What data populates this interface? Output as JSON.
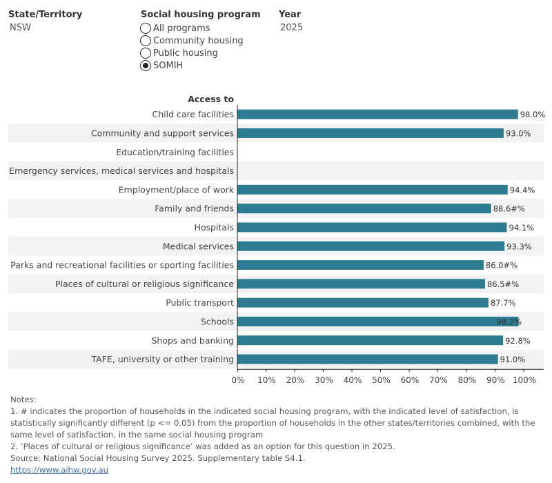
{
  "filters": {
    "state": {
      "label": "State/Territory",
      "value": "NSW"
    },
    "program": {
      "label": "Social housing program",
      "options": [
        "All programs",
        "Community housing",
        "Public housing",
        "SOMIH"
      ],
      "selected": "SOMIH"
    },
    "year": {
      "label": "Year",
      "value": "2025"
    }
  },
  "chart_data": {
    "type": "bar",
    "orientation": "horizontal",
    "category_header": "Access to",
    "categories": [
      "Child care facilities",
      "Community and support services",
      "Education/training facilities",
      "Emergency services, medical services and hospitals",
      "Employment/place of work",
      "Family and friends",
      "Hospitals",
      "Medical services",
      "Parks and recreational facilities or sporting facilities",
      "Places of cultural or religious significance",
      "Public transport",
      "Schools",
      "Shops and banking",
      "TAFE, university or other training"
    ],
    "values": [
      98.0,
      93.0,
      null,
      null,
      94.4,
      88.6,
      94.1,
      93.3,
      86.0,
      86.5,
      87.7,
      98.2,
      92.8,
      91.0
    ],
    "value_labels": [
      "98.0%",
      "93.0%",
      "",
      "",
      "94.4%",
      "88.6#%",
      "94.1%",
      "93.3%",
      "86.0#%",
      "86.5#%",
      "87.7%",
      "98.2%",
      "92.8%",
      "91.0%"
    ],
    "x_ticks": [
      "0%",
      "10%",
      "20%",
      "30%",
      "40%",
      "50%",
      "60%",
      "70%",
      "80%",
      "90%",
      "100%"
    ],
    "xlim": [
      0,
      100
    ],
    "bar_color": "#2e7c92",
    "band_color": "#f2f2f2"
  },
  "notes": {
    "heading": "Notes:",
    "note1": "1. # indicates the proportion of households in the indicated social housing program, with the indicated level of satisfaction, is statistically significantly different (p <= 0.05) from the proportion of households in the other states/territories combined, with the same level of satisfaction, in the same social housing program",
    "note2": "2. ‘Places of cultural or religious significance’ was added as an option for this question in 2025.",
    "source": "Source: National Social Housing Survey 2025. Supplementary table S4.1.",
    "link": "https://www.aihw.gov.au"
  }
}
